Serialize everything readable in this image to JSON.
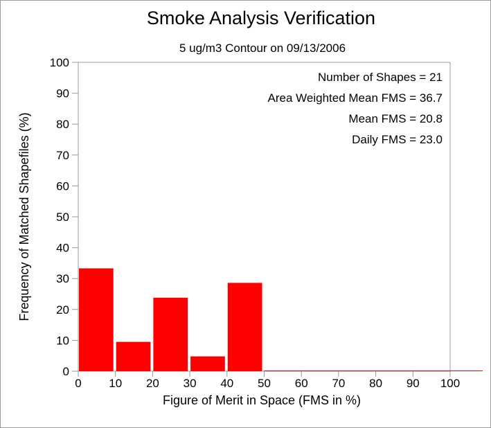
{
  "chart_data": {
    "type": "bar",
    "title": "Smoke Analysis Verification",
    "subtitle": "5 ug/m3 Contour on 09/13/2006",
    "xlabel": "Figure of Merit in Space (FMS in %)",
    "ylabel": "Frequency of Matched Shapefiles (%)",
    "xlim": [
      0,
      100
    ],
    "ylim": [
      0,
      100
    ],
    "xticks": [
      "0",
      "10",
      "20",
      "30",
      "40",
      "50",
      "60",
      "70",
      "80",
      "90",
      "100"
    ],
    "yticks": [
      "0",
      "10",
      "20",
      "30",
      "40",
      "50",
      "60",
      "70",
      "80",
      "90",
      "100"
    ],
    "bins": [
      {
        "start": 0,
        "end": 10,
        "value": 33.3
      },
      {
        "start": 10,
        "end": 20,
        "value": 9.5
      },
      {
        "start": 20,
        "end": 30,
        "value": 23.8
      },
      {
        "start": 30,
        "end": 40,
        "value": 4.8
      },
      {
        "start": 40,
        "end": 50,
        "value": 28.6
      },
      {
        "start": 50,
        "end": 60,
        "value": 0
      },
      {
        "start": 60,
        "end": 70,
        "value": 0
      },
      {
        "start": 70,
        "end": 80,
        "value": 0
      },
      {
        "start": 80,
        "end": 90,
        "value": 0
      },
      {
        "start": 90,
        "end": 100,
        "value": 0
      }
    ],
    "annotations": [
      "Number of Shapes = 21",
      "Area Weighted Mean FMS = 36.7",
      "Mean FMS = 20.8",
      "Daily FMS = 23.0"
    ],
    "grid": false,
    "colors": {
      "bar": "#ff0000",
      "axis": "#999999"
    }
  }
}
